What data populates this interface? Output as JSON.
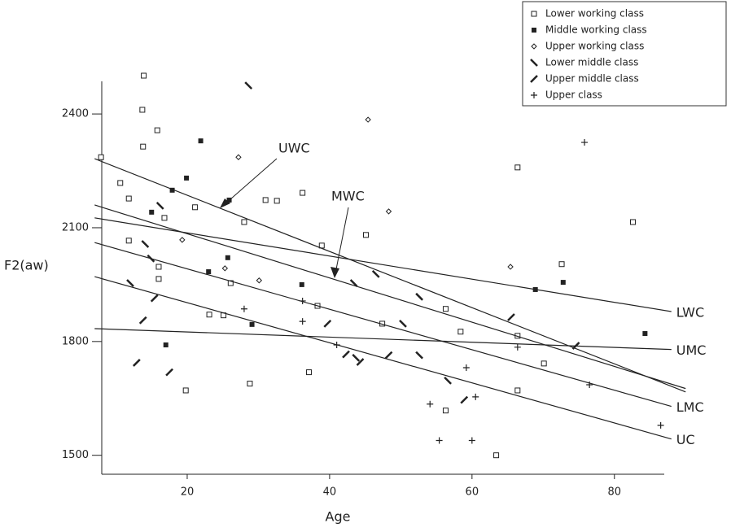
{
  "chart_data": {
    "type": "scatter",
    "xlabel": "Age",
    "ylabel": "F2(aw)",
    "xlim": [
      8,
      87
    ],
    "ylim": [
      1450,
      2486
    ],
    "xticks": [
      20,
      40,
      60,
      80
    ],
    "yticks": [
      1500,
      1800,
      2100,
      2400
    ],
    "legend": "top-right",
    "series": [
      {
        "name": "Lower working class",
        "marker": "square",
        "color": "#222",
        "x": [
          7.9,
          13.9,
          13.7,
          15.8,
          13.8,
          10.6,
          11.8,
          16.8,
          11.8,
          16.0,
          16.0,
          21.1,
          28.0,
          31.0,
          32.6,
          36.2,
          45.1,
          38.9,
          26.1,
          23.1,
          25.1,
          47.4,
          38.3,
          37.1,
          28.8,
          19.8,
          56.3,
          58.4,
          66.4,
          66.4,
          72.6,
          70.1,
          66.4,
          56.3,
          63.4,
          82.6
        ],
        "values": [
          2286,
          2501,
          2411,
          2357,
          2314,
          2218,
          2177,
          2126,
          2066,
          1997,
          1965,
          2154,
          2115,
          2173,
          2171,
          2192,
          2081,
          2053,
          1954,
          1871,
          1869,
          1847,
          1894,
          1719,
          1689,
          1671,
          1886,
          1826,
          2259,
          1815,
          2004,
          1742,
          1671,
          1618,
          1500,
          2115
        ]
      },
      {
        "name": "Middle working class",
        "marker": "filled-square",
        "color": "#222",
        "x": [
          21.9,
          19.9,
          17.9,
          15.0,
          25.9,
          25.7,
          23.0,
          29.1,
          36.1,
          17.0,
          68.9,
          72.8,
          84.3
        ],
        "values": [
          2329,
          2231,
          2199,
          2141,
          2173,
          2021,
          1984,
          1845,
          1950,
          1791,
          1937,
          1956,
          1821
        ]
      },
      {
        "name": "Upper working class",
        "marker": "diamond",
        "color": "#222",
        "x": [
          27.2,
          45.4,
          48.3,
          19.3,
          25.3,
          30.1,
          65.4
        ],
        "values": [
          2286,
          2385,
          2143,
          2068,
          1993,
          1961,
          1997
        ]
      },
      {
        "name": "Lower middle class",
        "marker": "backslash",
        "color": "#222",
        "x": [
          28.6,
          16.2,
          14.1,
          14.9,
          12.0,
          43.4,
          46.5,
          52.6,
          50.3,
          52.6,
          43.7,
          56.6
        ],
        "values": [
          2475,
          2158,
          2057,
          2019,
          1954,
          1954,
          1978,
          1918,
          1847,
          1764,
          1757,
          1697
        ]
      },
      {
        "name": "Upper middle class",
        "marker": "slash",
        "color": "#222",
        "x": [
          15.4,
          13.8,
          12.9,
          17.5,
          39.7,
          42.3,
          44.3,
          48.3,
          58.9,
          65.5,
          74.6
        ],
        "values": [
          1914,
          1856,
          1744,
          1719,
          1847,
          1766,
          1746,
          1764,
          1646,
          1864,
          1789
        ]
      },
      {
        "name": "Upper class",
        "marker": "plus",
        "color": "#222",
        "x": [
          75.8,
          28.0,
          36.2,
          36.2,
          41.0,
          54.1,
          60.5,
          59.2,
          55.4,
          60.0,
          66.4,
          76.5,
          86.5
        ],
        "values": [
          2325,
          1886,
          1907,
          1853,
          1791,
          1635,
          1654,
          1731,
          1539,
          1539,
          1785,
          1686,
          1579
        ]
      }
    ],
    "lines": [
      {
        "name": "UWC",
        "x": [
          7,
          90
        ],
        "values": [
          2282,
          1667
        ]
      },
      {
        "name": "MWC",
        "x": [
          7,
          90
        ],
        "values": [
          2160,
          1676
        ]
      },
      {
        "name": "LWC",
        "x": [
          7,
          88
        ],
        "values": [
          2126,
          1879
        ]
      },
      {
        "name": "LMC",
        "x": [
          7,
          88
        ],
        "values": [
          2061,
          1629
        ]
      },
      {
        "name": "UC",
        "x": [
          7,
          88
        ],
        "values": [
          1971,
          1543
        ]
      },
      {
        "name": "UMC",
        "x": [
          7,
          88
        ],
        "values": [
          1834,
          1779
        ]
      }
    ]
  }
}
